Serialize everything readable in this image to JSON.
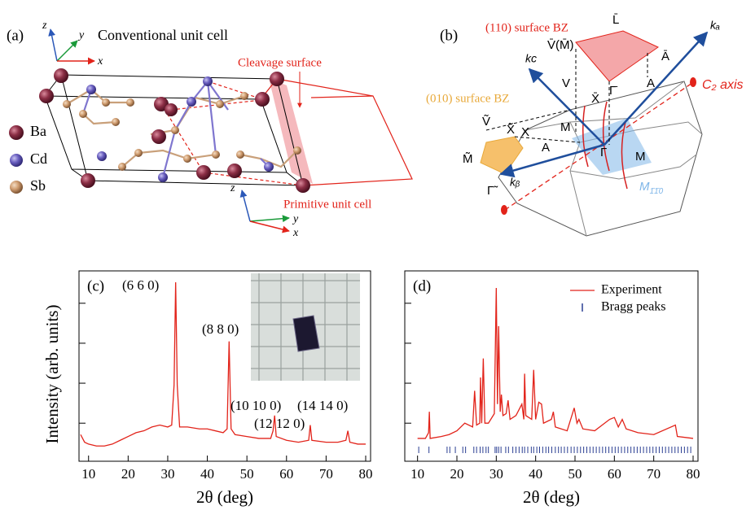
{
  "panel_a": {
    "label": "(a)",
    "title": "Conventional unit cell",
    "cleavage": "Cleavage surface",
    "primitive": "Primitive unit cell",
    "legend": [
      "Ba",
      "Cd",
      "Sb"
    ],
    "axes_top": [
      "z",
      "y",
      "x"
    ],
    "axes_bottom": [
      "z",
      "y",
      "x"
    ]
  },
  "panel_b": {
    "label": "(b)",
    "surface_110": "(110) surface BZ",
    "surface_010": "(010) surface BZ",
    "c2_axis": "C₂ axis",
    "k_a": "kₐ",
    "k_c": "kᴄ",
    "k_b": "kᵦ",
    "points": [
      "L̄",
      "V̄(M̄)",
      "Ā",
      "Γ̄",
      "X̄",
      "V",
      "X",
      "M",
      "A",
      "Γ",
      "M",
      "Ṽ",
      "X̃",
      "M̃",
      "Γ̃",
      "A"
    ],
    "mirror": [
      "M",
      "1̄1̄0"
    ]
  },
  "chart_data": [
    {
      "type": "line",
      "label": "(c)",
      "xlabel": "2θ (deg)",
      "ylabel": "Intensity (arb. units)",
      "xlim": [
        8,
        80
      ],
      "xticks": [
        10,
        20,
        30,
        40,
        50,
        60,
        70,
        80
      ],
      "ylim": [
        0,
        100
      ],
      "x": [
        8,
        9,
        10,
        12,
        14,
        16,
        18,
        20,
        22,
        24,
        26,
        28,
        30,
        31,
        31.6,
        32,
        32.4,
        33,
        35,
        38,
        40,
        42,
        44,
        45,
        45.5,
        46,
        47,
        50,
        53,
        56,
        56.6,
        57,
        57.4,
        60,
        63,
        65.6,
        66,
        66.4,
        70,
        73,
        75,
        75.5,
        76,
        78,
        80
      ],
      "series": [
        {
          "color": "#e2231a",
          "values": [
            14,
            10,
            9,
            8,
            8,
            9,
            11,
            13,
            15,
            16,
            18,
            19,
            18,
            19,
            40,
            94,
            40,
            18,
            18,
            17,
            17,
            16,
            15,
            17,
            63,
            17,
            14,
            13,
            12,
            12,
            16,
            24,
            13,
            11,
            10,
            11,
            19,
            11,
            10,
            10,
            11,
            16,
            10,
            9,
            9
          ]
        }
      ],
      "annotations": [
        "(6 6 0)",
        "(8 8 0)",
        "(10 10 0)",
        "(12 12 0)",
        "(14 14 0)"
      ]
    },
    {
      "type": "line",
      "label": "(d)",
      "xlabel": "2θ (deg)",
      "xlim": [
        8,
        80
      ],
      "xticks": [
        10,
        20,
        30,
        40,
        50,
        60,
        70,
        80
      ],
      "ylim": [
        0,
        100
      ],
      "x": [
        10,
        12,
        12.8,
        13,
        13.2,
        16,
        18,
        20,
        22,
        24,
        24.5,
        25,
        25.8,
        26,
        26.3,
        26.7,
        27.1,
        28,
        29.5,
        30,
        30.3,
        30.6,
        31,
        31.3,
        31.7,
        32.5,
        33,
        33.5,
        35,
        36.5,
        37,
        37.2,
        37.5,
        39,
        39.5,
        40,
        40.8,
        41.5,
        42,
        44,
        44.5,
        45,
        48,
        49.8,
        50.5,
        51,
        52,
        55,
        58.8,
        60,
        61,
        62,
        63,
        66,
        70,
        75.5,
        76,
        80
      ],
      "series": [
        {
          "name": "Experiment",
          "color": "#e2231a",
          "values": [
            12,
            12,
            15,
            26,
            12,
            13,
            14,
            16,
            20,
            18,
            37,
            19,
            20,
            44,
            20,
            54,
            20,
            20,
            25,
            91,
            30,
            71,
            26,
            35,
            24,
            25,
            32,
            22,
            24,
            30,
            22,
            46,
            24,
            22,
            48,
            22,
            31,
            30,
            20,
            22,
            26,
            18,
            16,
            28,
            20,
            22,
            17,
            16,
            22,
            23,
            18,
            22,
            17,
            15,
            14,
            19,
            13,
            12
          ]
        }
      ],
      "bragg_peaks": {
        "name": "Bragg peaks",
        "color": "#2b3f93",
        "x": [
          10.3,
          12.9,
          17.5,
          18.2,
          19.6,
          21.5,
          22.2,
          24.3,
          25.0,
          25.9,
          26.6,
          27.4,
          28.0,
          29.7,
          30.1,
          30.6,
          31.2,
          32.4,
          33.1,
          34.2,
          35.0,
          35.8,
          36.6,
          37.2,
          38.0,
          38.9,
          39.5,
          40.3,
          41.0,
          41.8,
          42.6,
          43.3,
          44.1,
          45.0,
          45.8,
          46.5,
          47.3,
          48.1,
          49.0,
          49.8,
          50.6,
          51.4,
          52.2,
          53.0,
          53.8,
          54.6,
          55.4,
          56.2,
          57.0,
          57.8,
          58.6,
          59.4,
          60.2,
          61.0,
          61.8,
          62.6,
          63.4,
          64.2,
          65.0,
          65.8,
          66.6,
          67.4,
          68.2,
          69.0,
          69.8,
          70.6,
          71.4,
          72.2,
          73.0,
          73.8,
          74.6,
          75.4,
          76.2,
          77.0,
          77.8,
          78.6,
          79.4
        ]
      }
    }
  ]
}
